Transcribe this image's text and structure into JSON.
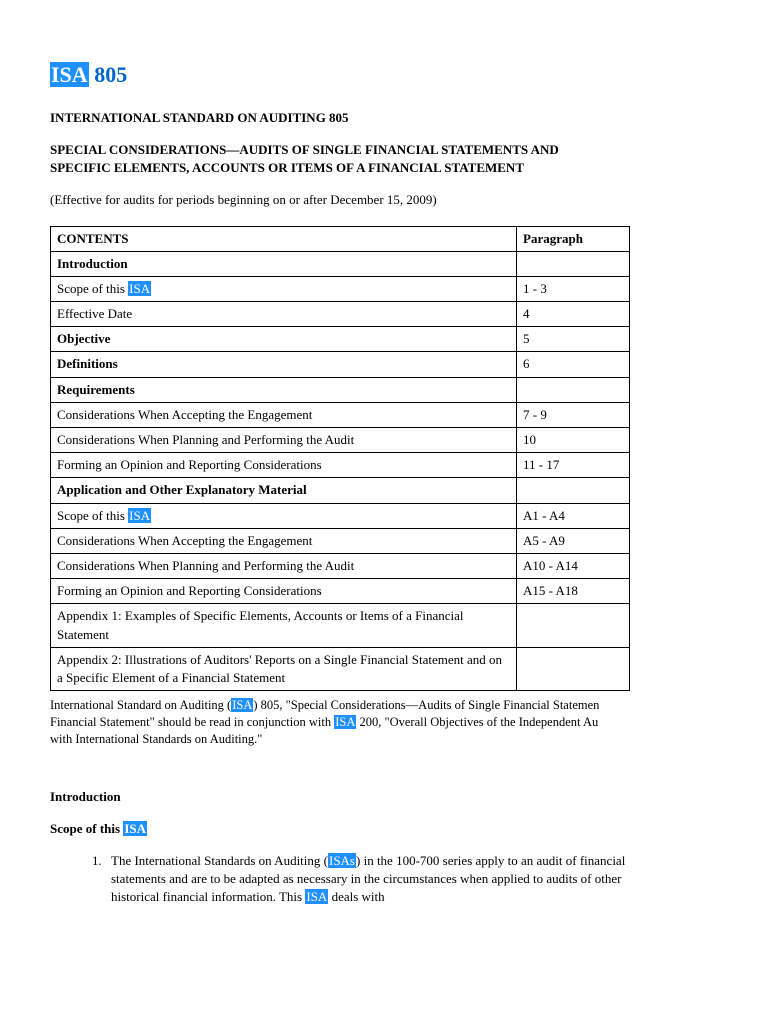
{
  "docCode": {
    "abbr": "ISA",
    "num": "805"
  },
  "mainTitle": "INTERNATIONAL STANDARD ON AUDITING 805",
  "subTitle": "SPECIAL CONSIDERATIONS—AUDITS OF SINGLE FINANCIAL STATEMENTS AND SPECIFIC ELEMENTS, ACCOUNTS OR ITEMS OF A FINANCIAL STATEMENT",
  "effective": "(Effective for audits for periods beginning on or after December 15, 2009)",
  "table": {
    "headers": {
      "contents": "CONTENTS",
      "paragraph": "Paragraph"
    },
    "rows": [
      {
        "type": "section",
        "label": "Introduction",
        "para": ""
      },
      {
        "type": "item-isa",
        "pre": "Scope of this ",
        "hl": "ISA",
        "post": "",
        "para": "1 - 3"
      },
      {
        "type": "item",
        "label": "Effective Date",
        "para": "4"
      },
      {
        "type": "section",
        "label": "Objective",
        "para": "5"
      },
      {
        "type": "section",
        "label": "Definitions",
        "para": "6"
      },
      {
        "type": "section",
        "label": "Requirements",
        "para": ""
      },
      {
        "type": "item",
        "label": "Considerations When Accepting the Engagement",
        "para": "7 - 9"
      },
      {
        "type": "item",
        "label": "Considerations When Planning and Performing the Audit",
        "para": "10"
      },
      {
        "type": "item",
        "label": "Forming an Opinion and Reporting Considerations",
        "para": "11 - 17"
      },
      {
        "type": "section",
        "label": "Application and Other Explanatory Material",
        "para": ""
      },
      {
        "type": "item-isa",
        "pre": "Scope of this ",
        "hl": "ISA",
        "post": "",
        "para": "A1 - A4"
      },
      {
        "type": "item",
        "label": "Considerations When Accepting the Engagement",
        "para": "A5 - A9"
      },
      {
        "type": "item",
        "label": "Considerations When Planning and Performing the Audit",
        "para": "A10 - A14"
      },
      {
        "type": "item",
        "label": "Forming an Opinion and Reporting Considerations",
        "para": "A15 - A18"
      },
      {
        "type": "item",
        "label": "Appendix 1: Examples of Specific Elements, Accounts or Items of a Financial Statement",
        "para": ""
      },
      {
        "type": "item",
        "label": "Appendix 2: Illustrations of Auditors' Reports on a Single Financial Statement and on a Specific Element of a Financial Statement",
        "para": ""
      }
    ]
  },
  "footnote": {
    "p1a": "International Standard on Auditing (",
    "p1hl": "ISA",
    "p1b": ") 805, \"Special Considerations—Audits of Single Financial Statemen",
    "p2a": "Financial Statement\" should be read in conjunction with ",
    "p2hl": "ISA",
    "p2b": " 200, \"Overall Objectives of the Independent Au",
    "p3": "with International Standards on Auditing.\""
  },
  "intro": "Introduction",
  "scope": {
    "pre": "Scope of this ",
    "hl": "ISA"
  },
  "list1": {
    "a": "The International Standards on Auditing (",
    "hl1": "ISAs",
    "b": ") in the 100-700 series apply to an audit of financial statements and are to be adapted as necessary in the circumstances when applied to audits of other historical financial information. This ",
    "hl2": "ISA",
    "c": " deals with"
  },
  "colors": {
    "highlightBg": "#1e90ff",
    "highlightFg": "#ffffff",
    "link": "#0066cc"
  }
}
